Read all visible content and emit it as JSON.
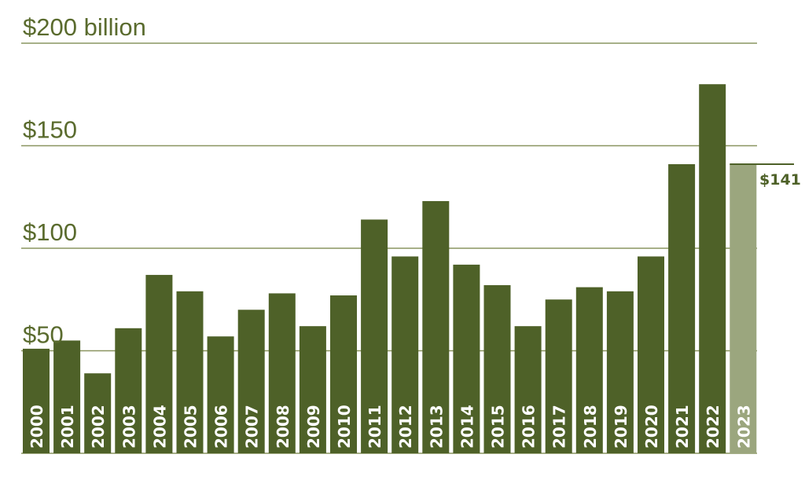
{
  "chart_data": {
    "type": "bar",
    "categories": [
      "2000",
      "2001",
      "2002",
      "2003",
      "2004",
      "2005",
      "2006",
      "2007",
      "2008",
      "2009",
      "2010",
      "2011",
      "2012",
      "2013",
      "2014",
      "2015",
      "2016",
      "2017",
      "2018",
      "2019",
      "2020",
      "2021",
      "2022",
      "2023"
    ],
    "values": [
      51,
      55,
      39,
      61,
      87,
      79,
      57,
      70,
      78,
      62,
      77,
      114,
      96,
      123,
      92,
      82,
      62,
      75,
      81,
      79,
      96,
      141,
      180,
      141
    ],
    "highlight_index": 23,
    "y_ticks": [
      {
        "value": 50,
        "label": "$50"
      },
      {
        "value": 100,
        "label": "$100"
      },
      {
        "value": 150,
        "label": "$150"
      },
      {
        "value": 200,
        "label": "$200 billion"
      }
    ],
    "ylim": [
      0,
      200
    ],
    "grid": true,
    "annotation": {
      "index": 23,
      "value": 141,
      "label": "$141"
    },
    "colors": {
      "bar": "#4e6128",
      "highlight": "#9ba67e",
      "grid": "#8a9560",
      "tick_text": "#5a6b2e",
      "bar_label": "#ffffff"
    }
  }
}
